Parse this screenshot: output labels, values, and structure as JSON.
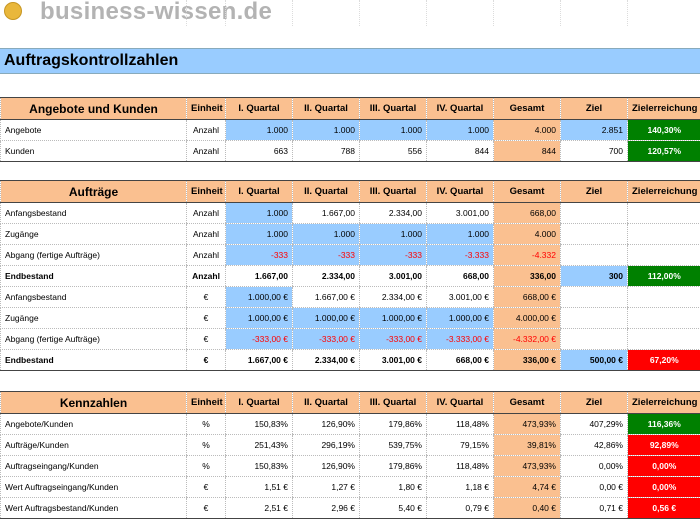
{
  "logo": {
    "text": "business-wissen.de"
  },
  "title": "Auftragskontrollzahlen",
  "header": {
    "unit": "Einheit",
    "q1": "I. Quartal",
    "q2": "II. Quartal",
    "q3": "III. Quartal",
    "q4": "IV. Quartal",
    "total": "Gesamt",
    "goal": "Ziel",
    "achievement": "Zielerreichung"
  },
  "sections": [
    {
      "title": "Angebote und Kunden",
      "rows": [
        {
          "label": "Angebote",
          "unit": "Anzahl",
          "q": [
            "1.000",
            "1.000",
            "1.000",
            "1.000"
          ],
          "total": "4.000",
          "goal": "2.851",
          "ach": "140,30%",
          "ach_color": "green",
          "qblue": [
            true,
            true,
            true,
            true
          ],
          "goal_blue": true
        },
        {
          "label": "Kunden",
          "unit": "Anzahl",
          "q": [
            "663",
            "788",
            "556",
            "844"
          ],
          "total": "844",
          "goal": "700",
          "ach": "120,57%",
          "ach_color": "green",
          "qblue": [
            false,
            false,
            false,
            false
          ],
          "goal_blue": false
        }
      ]
    },
    {
      "title": "Aufträge",
      "rows": [
        {
          "label": "Anfangsbestand",
          "unit": "Anzahl",
          "q": [
            "1.000",
            "1.667,00",
            "2.334,00",
            "3.001,00"
          ],
          "total": "668,00",
          "goal": "",
          "ach": "",
          "qblue": [
            true,
            false,
            false,
            false
          ]
        },
        {
          "label": "Zugänge",
          "unit": "Anzahl",
          "q": [
            "1.000",
            "1.000",
            "1.000",
            "1.000"
          ],
          "total": "4.000",
          "goal": "",
          "ach": "",
          "qblue": [
            true,
            true,
            true,
            true
          ]
        },
        {
          "label": "Abgang (fertige Aufträge)",
          "unit": "Anzahl",
          "q": [
            "-333",
            "-333",
            "-333",
            "-3.333"
          ],
          "total": "-4.332",
          "goal": "",
          "ach": "",
          "neg": true,
          "qblue": [
            true,
            true,
            true,
            true
          ]
        },
        {
          "label": "Endbestand",
          "unit": "Anzahl",
          "q": [
            "1.667,00",
            "2.334,00",
            "3.001,00",
            "668,00"
          ],
          "total": "336,00",
          "goal": "300",
          "ach": "112,00%",
          "ach_color": "green",
          "bold": true,
          "goal_blue": true,
          "qblue": [
            false,
            false,
            false,
            false
          ]
        },
        {
          "label": "Anfangsbestand",
          "unit": "€",
          "q": [
            "1.000,00 €",
            "1.667,00 €",
            "2.334,00 €",
            "3.001,00 €"
          ],
          "total": "668,00 €",
          "goal": "",
          "ach": "",
          "qblue": [
            true,
            false,
            false,
            false
          ]
        },
        {
          "label": "Zugänge",
          "unit": "€",
          "q": [
            "1.000,00 €",
            "1.000,00 €",
            "1.000,00 €",
            "1.000,00 €"
          ],
          "total": "4.000,00 €",
          "goal": "",
          "ach": "",
          "qblue": [
            true,
            true,
            true,
            true
          ]
        },
        {
          "label": "Abgang (fertige Aufträge)",
          "unit": "€",
          "q": [
            "-333,00 €",
            "-333,00 €",
            "-333,00 €",
            "-3.333,00 €"
          ],
          "total": "-4.332,00 €",
          "goal": "",
          "ach": "",
          "neg": true,
          "qblue": [
            true,
            true,
            true,
            true
          ]
        },
        {
          "label": "Endbestand",
          "unit": "€",
          "q": [
            "1.667,00 €",
            "2.334,00 €",
            "3.001,00 €",
            "668,00 €"
          ],
          "total": "336,00 €",
          "goal": "500,00 €",
          "ach": "67,20%",
          "ach_color": "red",
          "bold": true,
          "goal_blue": true,
          "qblue": [
            false,
            false,
            false,
            false
          ]
        }
      ]
    },
    {
      "title": "Kennzahlen",
      "rows": [
        {
          "label": "Angebote/Kunden",
          "unit": "%",
          "q": [
            "150,83%",
            "126,90%",
            "179,86%",
            "118,48%"
          ],
          "total": "473,93%",
          "goal": "407,29%",
          "ach": "116,36%",
          "ach_color": "green",
          "qblue": [
            false,
            false,
            false,
            false
          ]
        },
        {
          "label": "Aufträge/Kunden",
          "unit": "%",
          "q": [
            "251,43%",
            "296,19%",
            "539,75%",
            "79,15%"
          ],
          "total": "39,81%",
          "goal": "42,86%",
          "ach": "92,89%",
          "ach_color": "red",
          "qblue": [
            false,
            false,
            false,
            false
          ]
        },
        {
          "label": "Auftragseingang/Kunden",
          "unit": "%",
          "q": [
            "150,83%",
            "126,90%",
            "179,86%",
            "118,48%"
          ],
          "total": "473,93%",
          "goal": "0,00%",
          "ach": "0,00%",
          "ach_color": "red",
          "qblue": [
            false,
            false,
            false,
            false
          ]
        },
        {
          "label": "Wert Auftragseingang/Kunden",
          "unit": "€",
          "q": [
            "1,51 €",
            "1,27 €",
            "1,80 €",
            "1,18 €"
          ],
          "total": "4,74 €",
          "goal": "0,00 €",
          "ach": "0,00%",
          "ach_color": "red",
          "qblue": [
            false,
            false,
            false,
            false
          ]
        },
        {
          "label": "Wert Auftragsbestand/Kunden",
          "unit": "€",
          "q": [
            "2,51 €",
            "2,96 €",
            "5,40 €",
            "0,79 €"
          ],
          "total": "0,40 €",
          "goal": "0,71 €",
          "ach": "0,56 €",
          "ach_color": "red",
          "qblue": [
            false,
            false,
            false,
            false
          ]
        }
      ]
    }
  ]
}
